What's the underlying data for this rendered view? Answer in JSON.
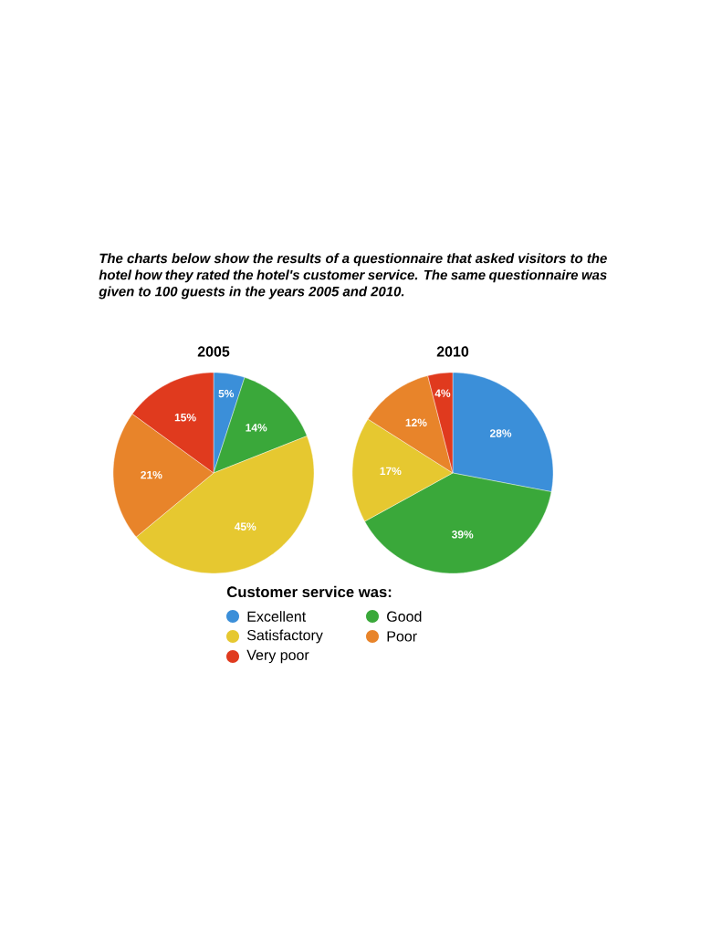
{
  "chart_data": [
    {
      "type": "pie",
      "title": "2005",
      "annotations": [
        "The charts below show the results of a questionnaire that asked visitors to the hotel how they rated the hotel's customer service. The same questionnaire was given to 100 guests in the years 2005 and 2010."
      ],
      "categories": [
        null,
        null,
        null,
        null,
        null
      ],
      "values": [
        5,
        14,
        45,
        21,
        15
      ],
      "value_labels": [
        "5%",
        "14%",
        "45%",
        "21%",
        "15%"
      ],
      "colors": [
        "#3b8fd9",
        "#3aa83a",
        "#e6c830",
        "#e8842a",
        "#e03a1e"
      ]
    },
    {
      "type": "pie",
      "title": "2010",
      "legend": "bottom",
      "legend_title": "Customer service was:",
      "categories": [
        "Excellent",
        "Good",
        "Satisfactory",
        "Poor",
        "Very poor"
      ],
      "values": [
        28,
        39,
        17,
        12,
        4
      ],
      "value_labels": [
        "28%",
        "39%",
        "17%",
        "12%",
        "4%"
      ],
      "colors": [
        "#3b8fd9",
        "#3aa83a",
        "#e6c830",
        "#e8842a",
        "#e03a1e"
      ]
    }
  ]
}
